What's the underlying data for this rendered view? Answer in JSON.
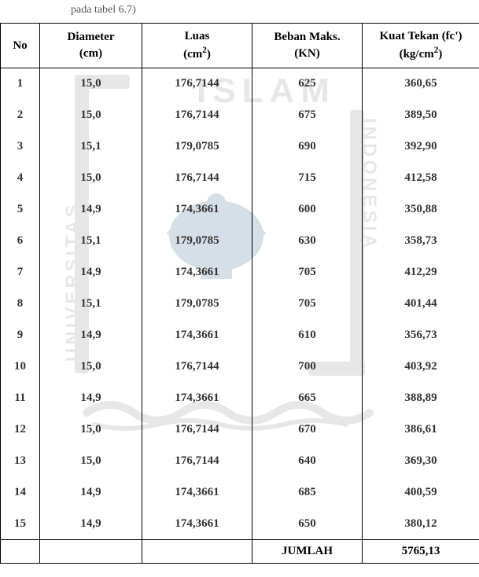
{
  "caption": "pada tabel 6.7)",
  "columns": {
    "no": {
      "line1": "No",
      "line2": ""
    },
    "diameter": {
      "line1": "Diameter",
      "line2": "(cm)"
    },
    "luas": {
      "line1": "Luas",
      "line2_pre": "(cm",
      "line2_sup": "2",
      "line2_post": ")"
    },
    "beban": {
      "line1": "Beban Maks.",
      "line2": "(KN)"
    },
    "kt": {
      "line1": "Kuat Tekan (fc')",
      "line2_pre": "(kg/cm",
      "line2_sup": "2",
      "line2_post": ")"
    }
  },
  "rows": [
    {
      "no": "1",
      "dia": "15,0",
      "luas": "176,7144",
      "beb": "625",
      "kt": "360,65"
    },
    {
      "no": "2",
      "dia": "15,0",
      "luas": "176,7144",
      "beb": "675",
      "kt": "389,50"
    },
    {
      "no": "3",
      "dia": "15,1",
      "luas": "179,0785",
      "beb": "690",
      "kt": "392,90"
    },
    {
      "no": "4",
      "dia": "15,0",
      "luas": "176,7144",
      "beb": "715",
      "kt": "412,58"
    },
    {
      "no": "5",
      "dia": "14,9",
      "luas": "174,3661",
      "beb": "600",
      "kt": "350,88"
    },
    {
      "no": "6",
      "dia": "15,1",
      "luas": "179,0785",
      "beb": "630",
      "kt": "358,73"
    },
    {
      "no": "7",
      "dia": "14,9",
      "luas": "174,3661",
      "beb": "705",
      "kt": "412,29"
    },
    {
      "no": "8",
      "dia": "15,1",
      "luas": "179,0785",
      "beb": "705",
      "kt": "401,44"
    },
    {
      "no": "9",
      "dia": "14,9",
      "luas": "174,3661",
      "beb": "610",
      "kt": "356,73"
    },
    {
      "no": "10",
      "dia": "15,0",
      "luas": "176,7144",
      "beb": "700",
      "kt": "403,92"
    },
    {
      "no": "11",
      "dia": "14,9",
      "luas": "174,3661",
      "beb": "665",
      "kt": "388,89"
    },
    {
      "no": "12",
      "dia": "15,0",
      "luas": "176,7144",
      "beb": "670",
      "kt": "386,61"
    },
    {
      "no": "13",
      "dia": "15,0",
      "luas": "176,7144",
      "beb": "640",
      "kt": "369,30"
    },
    {
      "no": "14",
      "dia": "14,9",
      "luas": "174,3661",
      "beb": "685",
      "kt": "400,59"
    },
    {
      "no": "15",
      "dia": "14,9",
      "luas": "174,3661",
      "beb": "650",
      "kt": "380,12"
    }
  ],
  "footer": {
    "label": "JUMLAH",
    "total": "5765,13"
  },
  "watermark": {
    "islam_text": "ISLAM",
    "side_left": "UNIVERSITAS",
    "side_right": "INDONESIA",
    "color": "#808080",
    "accent": "#0a3a6a"
  }
}
